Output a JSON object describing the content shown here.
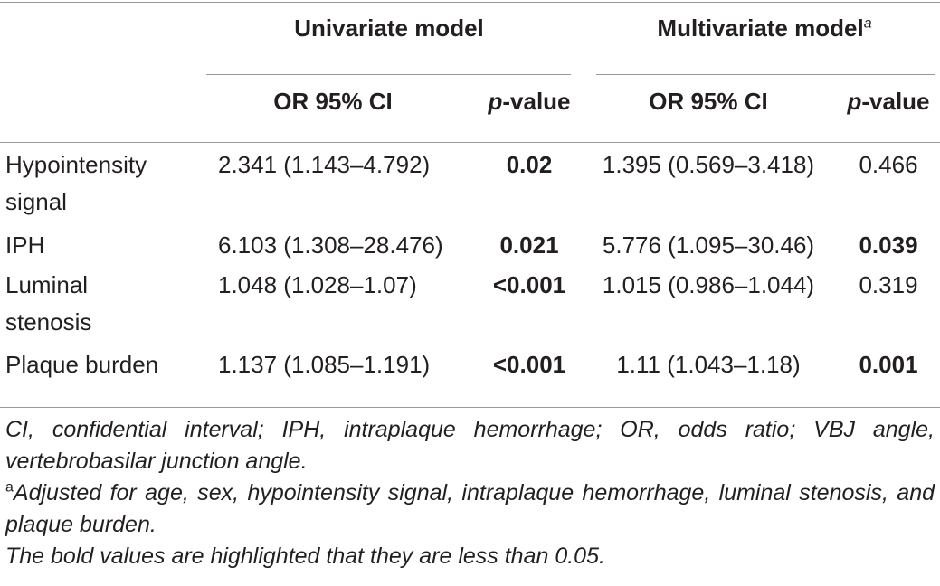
{
  "table": {
    "group_headers": [
      {
        "text": "Univariate model"
      },
      {
        "text": "Multivariate model",
        "sup": "a"
      }
    ],
    "sub_headers": [
      {
        "text": "OR 95% CI"
      },
      {
        "italic": "p",
        "text": "-value"
      },
      {
        "text": "OR 95% CI"
      },
      {
        "italic": "p",
        "text": "-value"
      }
    ],
    "rows": [
      [
        {
          "text": "Hypointensity signal"
        },
        {
          "text": "2.341 (1.143–4.792)"
        },
        {
          "text": "0.02",
          "bold": true
        },
        {
          "text": "1.395 (0.569–3.418)"
        },
        {
          "text": "0.466"
        }
      ],
      [
        {
          "text": "IPH"
        },
        {
          "text": "6.103 (1.308–28.476)"
        },
        {
          "text": "0.021",
          "bold": true
        },
        {
          "text": "5.776 (1.095–30.46)"
        },
        {
          "text": "0.039",
          "bold": true
        }
      ],
      [
        {
          "text": "Luminal stenosis"
        },
        {
          "text": "1.048 (1.028–1.07)"
        },
        {
          "text": "<0.001",
          "bold": true
        },
        {
          "text": "1.015 (0.986–1.044)"
        },
        {
          "text": "0.319"
        }
      ],
      [
        {
          "text": "Plaque burden"
        },
        {
          "text": "1.137 (1.085–1.191)"
        },
        {
          "text": "<0.001",
          "bold": true
        },
        {
          "text": "1.11 (1.043–1.18)"
        },
        {
          "text": "0.001",
          "bold": true
        }
      ]
    ],
    "footnotes": [
      {
        "text": "CI, confidential interval; IPH, intraplaque hemorrhage; OR, odds ratio; VBJ angle, vertebrobasilar junction angle."
      },
      {
        "marker": "a",
        "text": "Adjusted for age, sex, hypointensity signal, intraplaque hemorrhage, luminal stenosis, and plaque burden."
      },
      {
        "text": "The bold values are highlighted that they are less than 0.05."
      }
    ]
  }
}
